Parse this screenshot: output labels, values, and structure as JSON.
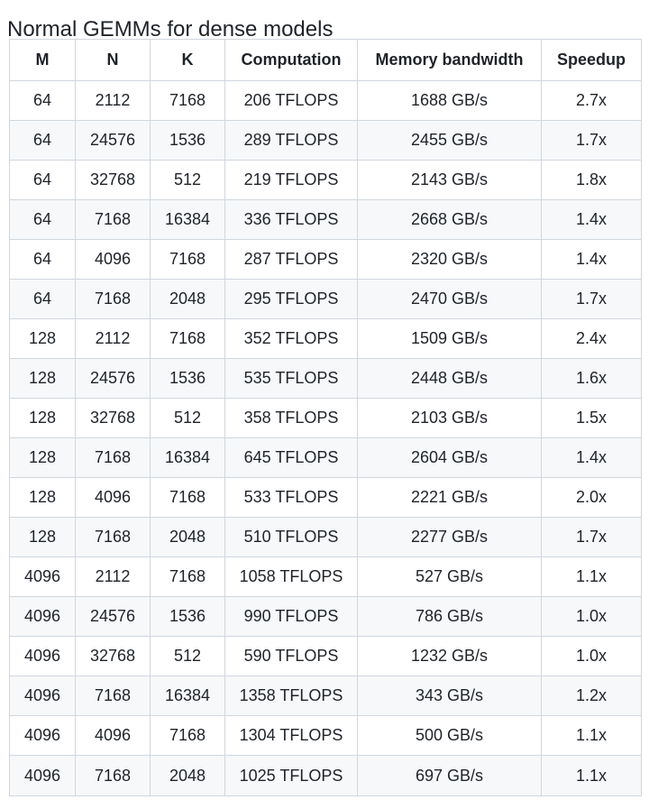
{
  "heading": "Normal GEMMs for dense models",
  "table": {
    "columns": [
      "M",
      "N",
      "K",
      "Computation",
      "Memory bandwidth",
      "Speedup"
    ],
    "rows": [
      [
        "64",
        "2112",
        "7168",
        "206 TFLOPS",
        "1688 GB/s",
        "2.7x"
      ],
      [
        "64",
        "24576",
        "1536",
        "289 TFLOPS",
        "2455 GB/s",
        "1.7x"
      ],
      [
        "64",
        "32768",
        "512",
        "219 TFLOPS",
        "2143 GB/s",
        "1.8x"
      ],
      [
        "64",
        "7168",
        "16384",
        "336 TFLOPS",
        "2668 GB/s",
        "1.4x"
      ],
      [
        "64",
        "4096",
        "7168",
        "287 TFLOPS",
        "2320 GB/s",
        "1.4x"
      ],
      [
        "64",
        "7168",
        "2048",
        "295 TFLOPS",
        "2470 GB/s",
        "1.7x"
      ],
      [
        "128",
        "2112",
        "7168",
        "352 TFLOPS",
        "1509 GB/s",
        "2.4x"
      ],
      [
        "128",
        "24576",
        "1536",
        "535 TFLOPS",
        "2448 GB/s",
        "1.6x"
      ],
      [
        "128",
        "32768",
        "512",
        "358 TFLOPS",
        "2103 GB/s",
        "1.5x"
      ],
      [
        "128",
        "7168",
        "16384",
        "645 TFLOPS",
        "2604 GB/s",
        "1.4x"
      ],
      [
        "128",
        "4096",
        "7168",
        "533 TFLOPS",
        "2221 GB/s",
        "2.0x"
      ],
      [
        "128",
        "7168",
        "2048",
        "510 TFLOPS",
        "2277 GB/s",
        "1.7x"
      ],
      [
        "4096",
        "2112",
        "7168",
        "1058 TFLOPS",
        "527 GB/s",
        "1.1x"
      ],
      [
        "4096",
        "24576",
        "1536",
        "990 TFLOPS",
        "786 GB/s",
        "1.0x"
      ],
      [
        "4096",
        "32768",
        "512",
        "590 TFLOPS",
        "1232 GB/s",
        "1.0x"
      ],
      [
        "4096",
        "7168",
        "16384",
        "1358 TFLOPS",
        "343 GB/s",
        "1.2x"
      ],
      [
        "4096",
        "4096",
        "7168",
        "1304 TFLOPS",
        "500 GB/s",
        "1.1x"
      ],
      [
        "4096",
        "7168",
        "2048",
        "1025 TFLOPS",
        "697 GB/s",
        "1.1x"
      ]
    ]
  }
}
